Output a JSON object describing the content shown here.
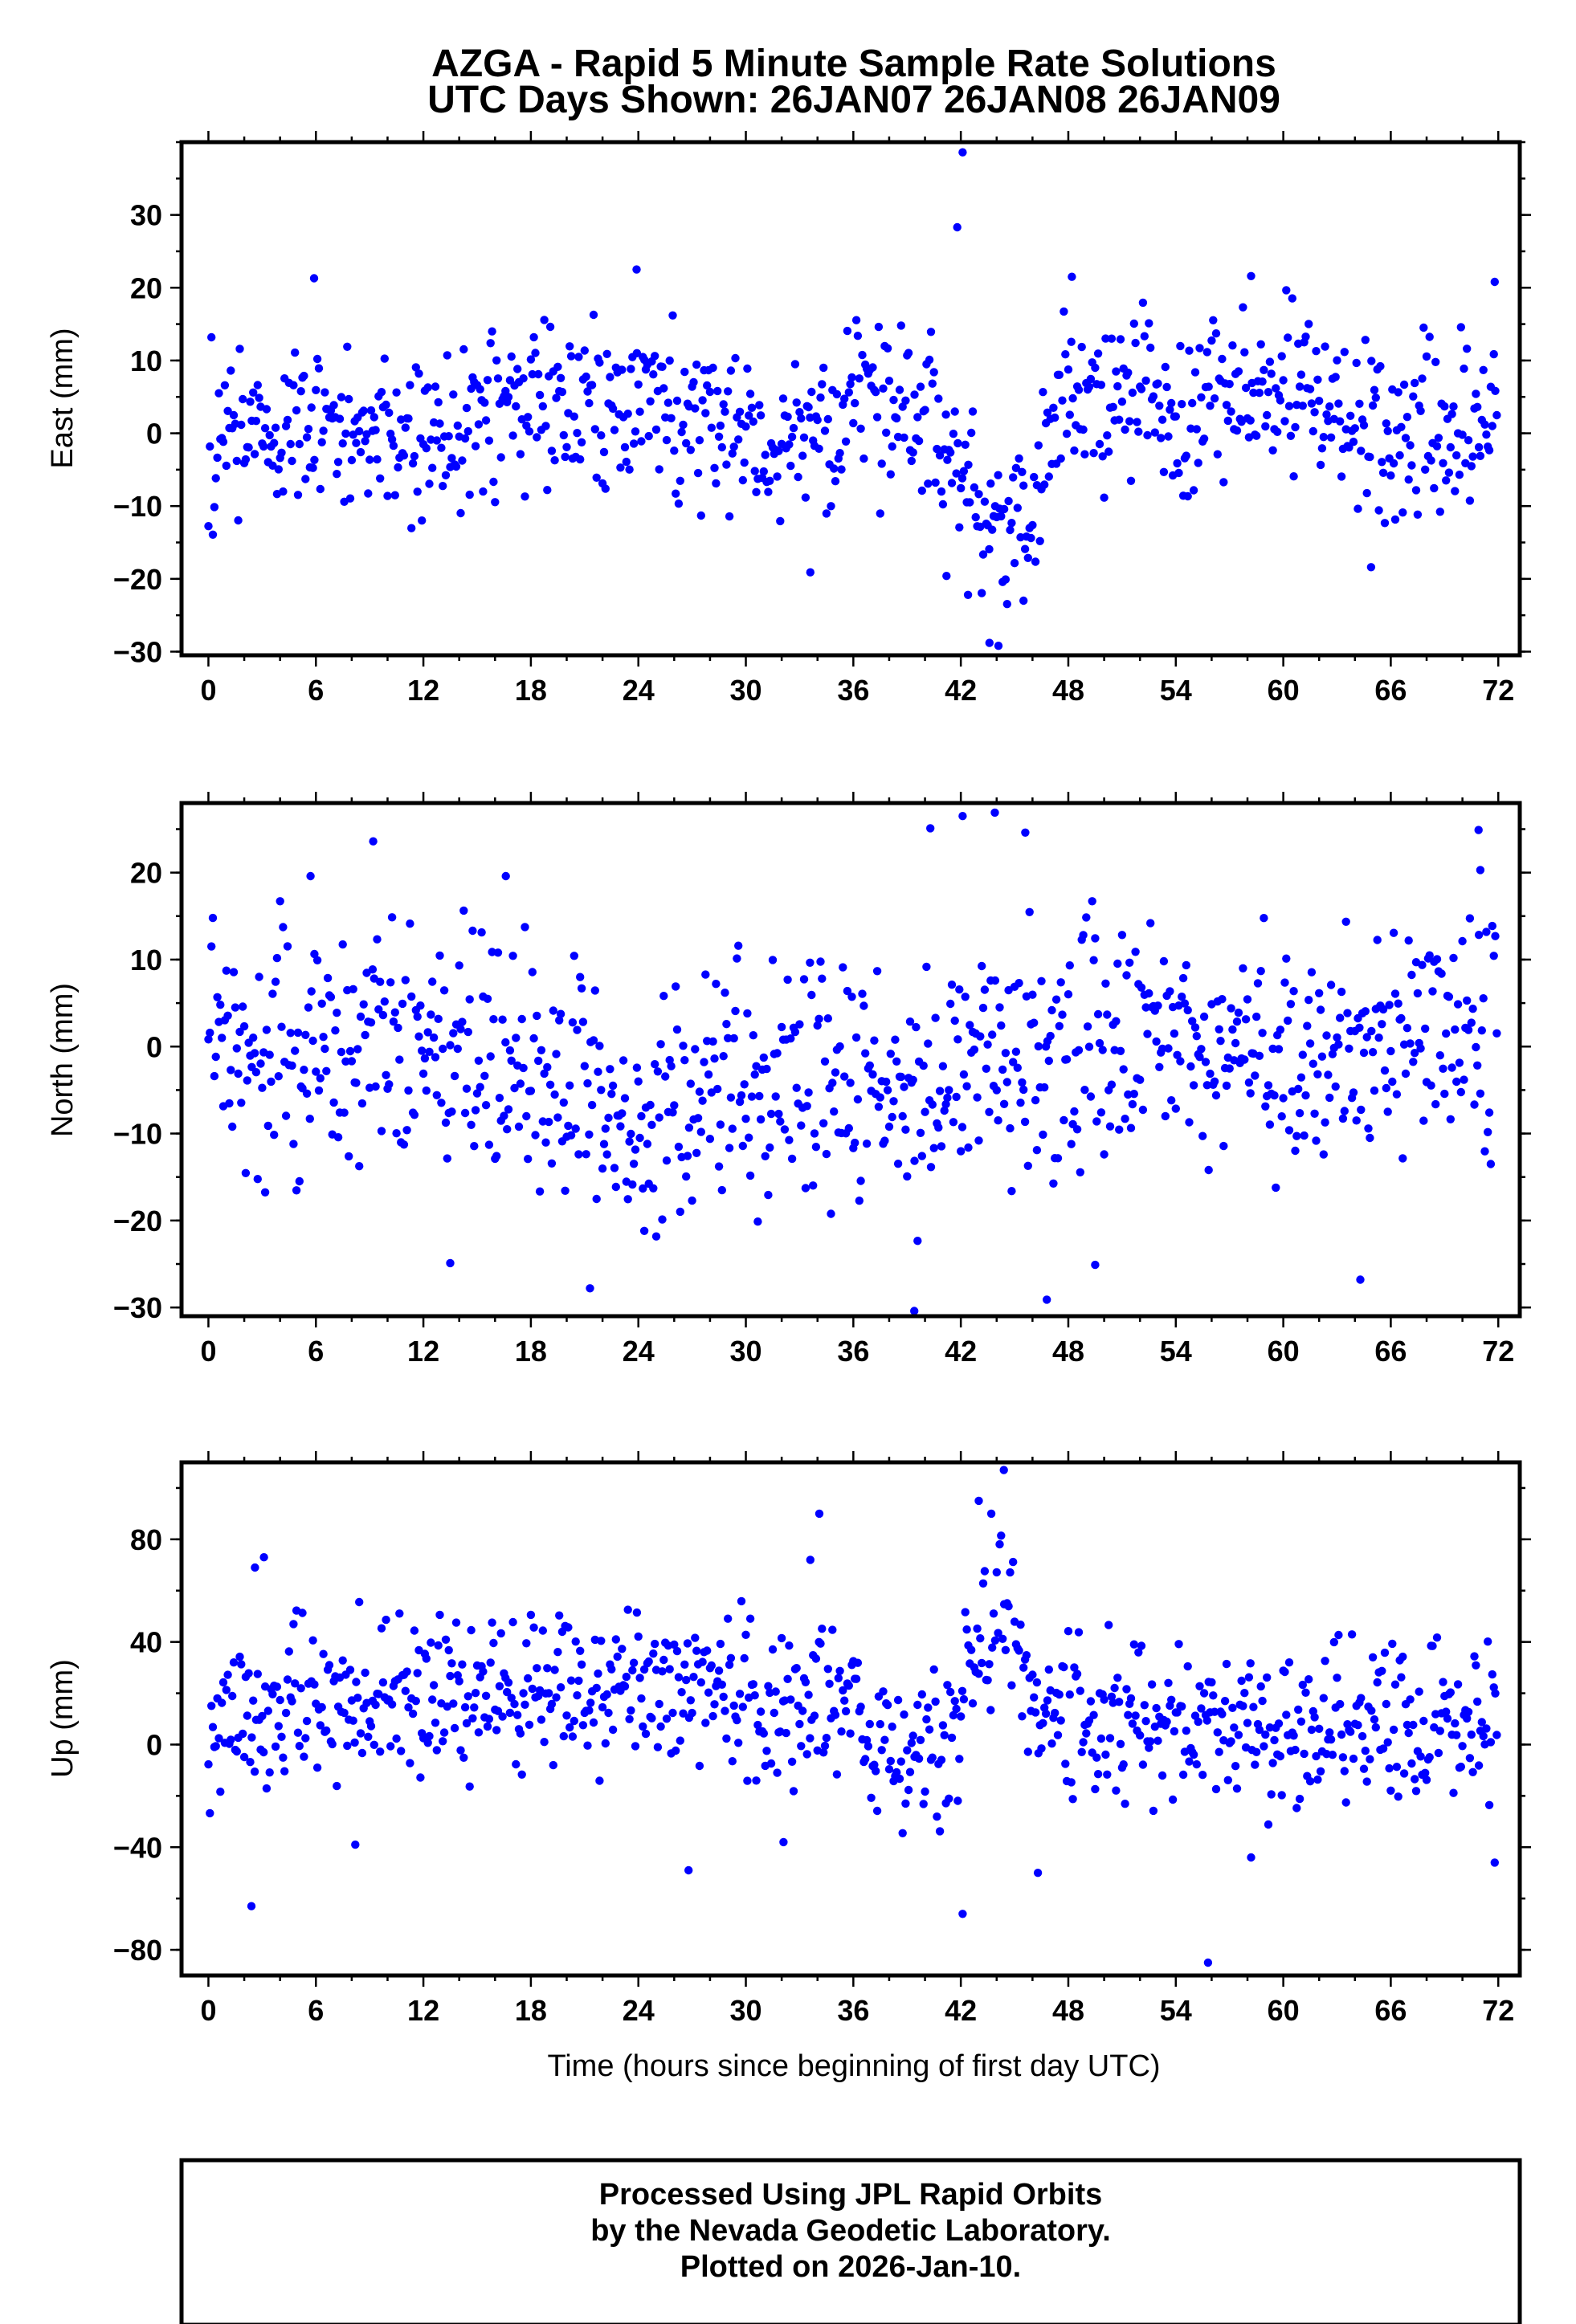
{
  "title_line1": "AZGA - Rapid 5 Minute Sample Rate Solutions",
  "title_line2": "UTC Days Shown:  26JAN07 26JAN08 26JAN09",
  "xlabel": "Time (hours since beginning of first day UTC)",
  "credit": {
    "line1": "Processed Using JPL Rapid Orbits",
    "line2": "by the Nevada Geodetic Laboratory.",
    "line3": "Plotted on 2026-Jan-10."
  },
  "colors": {
    "marker": "#0000ff",
    "frame": "#000000"
  },
  "chart_data": [
    {
      "type": "scatter",
      "ylabel": "East (mm)",
      "xlim": [
        -1.5,
        73.2
      ],
      "ylim": [
        -30.5,
        40
      ],
      "x_ticks": [
        "0",
        "6",
        "12",
        "18",
        "24",
        "30",
        "36",
        "42",
        "48",
        "54",
        "60",
        "66",
        "72"
      ],
      "y_ticks": [
        "30",
        "20",
        "10",
        "0",
        "−10",
        "−20",
        "−30"
      ],
      "noise_sd": 6,
      "outliers": [
        [
          5.9,
          21.3
        ],
        [
          41.8,
          28.3
        ],
        [
          42.1,
          38.6
        ],
        [
          43.6,
          -28.8
        ],
        [
          44.1,
          -29.2
        ],
        [
          45.5,
          -23
        ],
        [
          41.2,
          -19.6
        ],
        [
          33.6,
          -19.1
        ],
        [
          64.9,
          -18.4
        ],
        [
          23.9,
          22.5
        ],
        [
          48.2,
          21.5
        ],
        [
          58.2,
          21.6
        ],
        [
          71.8,
          20.8
        ],
        [
          42.4,
          -22.2
        ]
      ],
      "segments": [
        [
          0,
          0
        ],
        [
          6,
          0
        ],
        [
          12,
          0
        ],
        [
          18,
          4
        ],
        [
          24,
          5
        ],
        [
          30,
          0
        ],
        [
          36,
          3
        ],
        [
          40,
          3
        ],
        [
          42,
          -5
        ],
        [
          44,
          -14
        ],
        [
          46,
          -10
        ],
        [
          48,
          5
        ],
        [
          54,
          3
        ],
        [
          60,
          7
        ],
        [
          66,
          0
        ],
        [
          72,
          3
        ]
      ]
    },
    {
      "type": "scatter",
      "ylabel": "North (mm)",
      "xlim": [
        -1.5,
        73.2
      ],
      "ylim": [
        -31,
        28
      ],
      "x_ticks": [
        "0",
        "6",
        "12",
        "18",
        "24",
        "30",
        "36",
        "42",
        "48",
        "54",
        "60",
        "66",
        "72"
      ],
      "y_ticks": [
        "20",
        "10",
        "0",
        "−10",
        "−20",
        "−30"
      ],
      "noise_sd": 7,
      "outliers": [
        [
          9.2,
          23.6
        ],
        [
          5.7,
          19.6
        ],
        [
          16.6,
          19.6
        ],
        [
          13.5,
          -24.9
        ],
        [
          21.3,
          -27.8
        ],
        [
          39.4,
          -30.4
        ],
        [
          40.3,
          25.1
        ],
        [
          42.1,
          26.5
        ],
        [
          43.9,
          26.9
        ],
        [
          45.6,
          24.6
        ],
        [
          49.5,
          -25.1
        ],
        [
          64.3,
          -26.8
        ],
        [
          70.9,
          24.9
        ],
        [
          71.0,
          20.3
        ],
        [
          46.8,
          -29.1
        ]
      ],
      "segments": [
        [
          0,
          0
        ],
        [
          6,
          0
        ],
        [
          12,
          0
        ],
        [
          18,
          -2
        ],
        [
          24,
          -8
        ],
        [
          30,
          -4
        ],
        [
          36,
          -4
        ],
        [
          40,
          -6
        ],
        [
          42,
          0
        ],
        [
          48,
          0
        ],
        [
          54,
          0
        ],
        [
          60,
          -2
        ],
        [
          66,
          2
        ],
        [
          72,
          2
        ]
      ]
    },
    {
      "type": "scatter",
      "ylabel": "Up (mm)",
      "xlim": [
        -1.5,
        73.2
      ],
      "ylim": [
        -90,
        110
      ],
      "x_ticks": [
        "0",
        "6",
        "12",
        "18",
        "24",
        "30",
        "36",
        "42",
        "48",
        "54",
        "60",
        "66",
        "72"
      ],
      "y_ticks": [
        "80",
        "40",
        "0",
        "−40",
        "−80"
      ],
      "noise_sd": 16,
      "outliers": [
        [
          2.4,
          -63
        ],
        [
          3.1,
          73
        ],
        [
          2.6,
          69
        ],
        [
          34.1,
          90
        ],
        [
          33.6,
          72
        ],
        [
          44.4,
          107
        ],
        [
          43.7,
          90
        ],
        [
          43.0,
          95
        ],
        [
          42.1,
          -66
        ],
        [
          46.3,
          -50
        ],
        [
          55.8,
          -85
        ],
        [
          58.2,
          -44
        ],
        [
          71.8,
          -46
        ],
        [
          26.8,
          -49
        ],
        [
          8.2,
          -39
        ],
        [
          32.1,
          -38
        ]
      ],
      "segments": [
        [
          0,
          10
        ],
        [
          6,
          18
        ],
        [
          12,
          22
        ],
        [
          18,
          20
        ],
        [
          24,
          22
        ],
        [
          30,
          18
        ],
        [
          36,
          14
        ],
        [
          39,
          -5
        ],
        [
          42,
          8
        ],
        [
          43,
          40
        ],
        [
          45,
          55
        ],
        [
          46,
          15
        ],
        [
          48,
          10
        ],
        [
          54,
          10
        ],
        [
          60,
          5
        ],
        [
          66,
          10
        ],
        [
          72,
          10
        ]
      ]
    }
  ]
}
